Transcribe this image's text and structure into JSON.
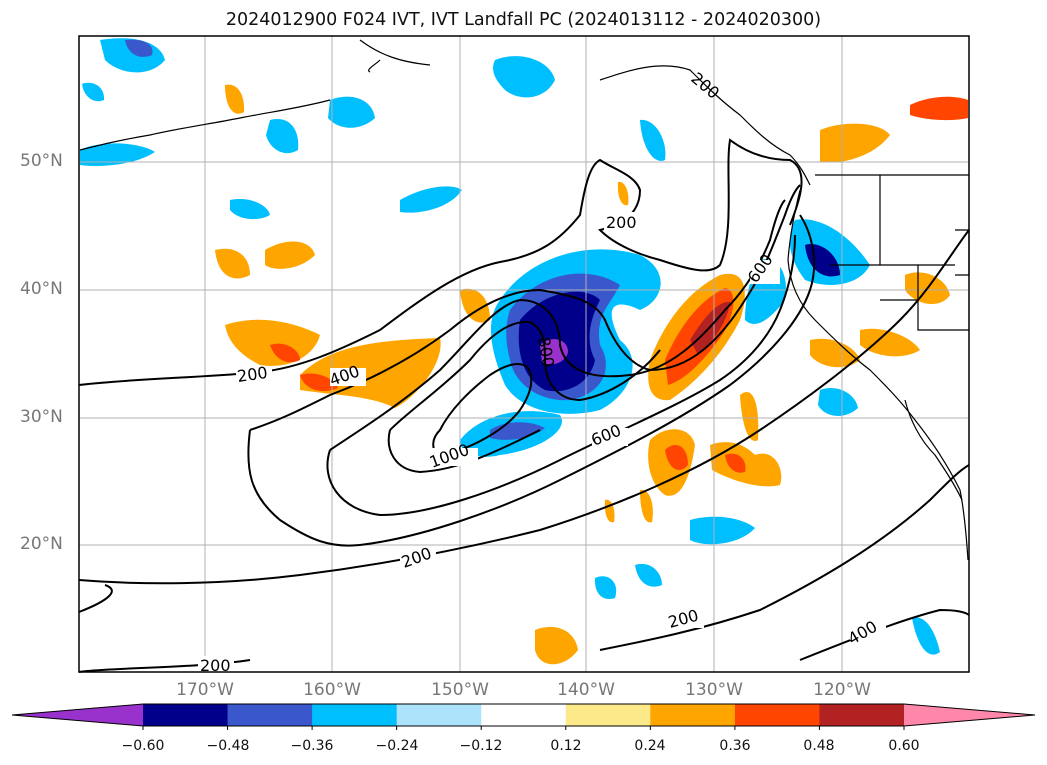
{
  "title": "2024012900 F024 IVT, IVT Landfall PC (2024013112 - 2024020300)",
  "lat_labels": [
    "50°N",
    "40°N",
    "30°N",
    "20°N"
  ],
  "lon_labels": [
    "170°W",
    "160°W",
    "150°W",
    "140°W",
    "130°W",
    "120°W"
  ],
  "contour_labels": [
    "200",
    "400",
    "1000",
    "600",
    "600",
    "200",
    "200",
    "200",
    "400",
    "200",
    "200",
    "800"
  ],
  "colorbar": {
    "ticks": [
      "−0.60",
      "−0.48",
      "−0.36",
      "−0.24",
      "−0.12",
      "0.12",
      "0.24",
      "0.36",
      "0.48",
      "0.60"
    ],
    "colors": [
      "#9932CC",
      "#00008B",
      "#3A57CC",
      "#00BFFF",
      "#ADE3FA",
      "#FFFFFF",
      "#FCE98A",
      "#FFA500",
      "#FF4500",
      "#B22222",
      "#FF88AA"
    ]
  },
  "colors": {
    "contour": "#000000",
    "grid": "#b0b0b0",
    "coast": "#000000"
  }
}
